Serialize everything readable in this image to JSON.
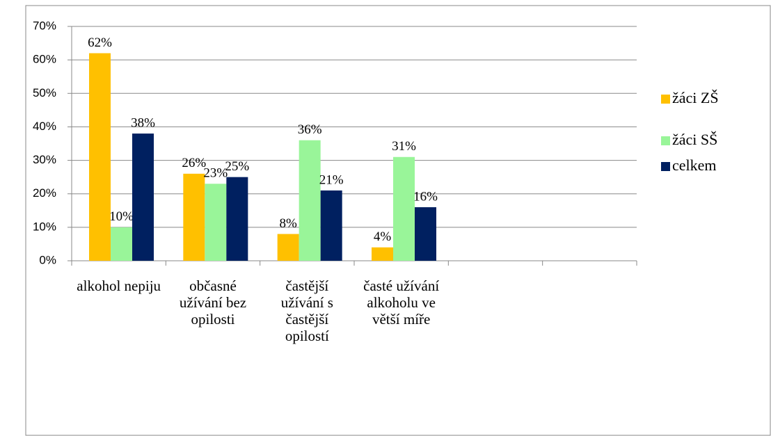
{
  "chart_data": {
    "type": "bar",
    "categories": [
      "alkohol nepiju",
      "občasné užívání bez opilosti",
      "častější užívání s častější opilostí",
      "časté užívání alkoholu ve větší míře",
      null,
      null
    ],
    "series": [
      {
        "name": "žáci ZŠ",
        "color": "#ffc000",
        "values": [
          62,
          26,
          8,
          4,
          null,
          null
        ],
        "value_labels": [
          "62%",
          "26%",
          "8%",
          "4%",
          null,
          null
        ]
      },
      {
        "name": "žáci SŠ",
        "color": "#99f599",
        "values": [
          10,
          23,
          36,
          31,
          null,
          null
        ],
        "value_labels": [
          "10%",
          "23%",
          "36%",
          "31%",
          null,
          null
        ]
      },
      {
        "name": "celkem",
        "color": "#002060",
        "values": [
          38,
          25,
          21,
          16,
          null,
          null
        ],
        "value_labels": [
          "38%",
          "25%",
          "21%",
          "16%",
          null,
          null
        ]
      }
    ],
    "ylim": [
      0,
      70
    ],
    "yticks": [
      {
        "value": 0,
        "label": "0%"
      },
      {
        "value": 10,
        "label": "10%"
      },
      {
        "value": 20,
        "label": "20%"
      },
      {
        "value": 30,
        "label": "30%"
      },
      {
        "value": 40,
        "label": "40%"
      },
      {
        "value": 50,
        "label": "50%"
      },
      {
        "value": 60,
        "label": "60%"
      },
      {
        "value": 70,
        "label": "70%"
      }
    ],
    "grid": true,
    "legend": "right"
  }
}
